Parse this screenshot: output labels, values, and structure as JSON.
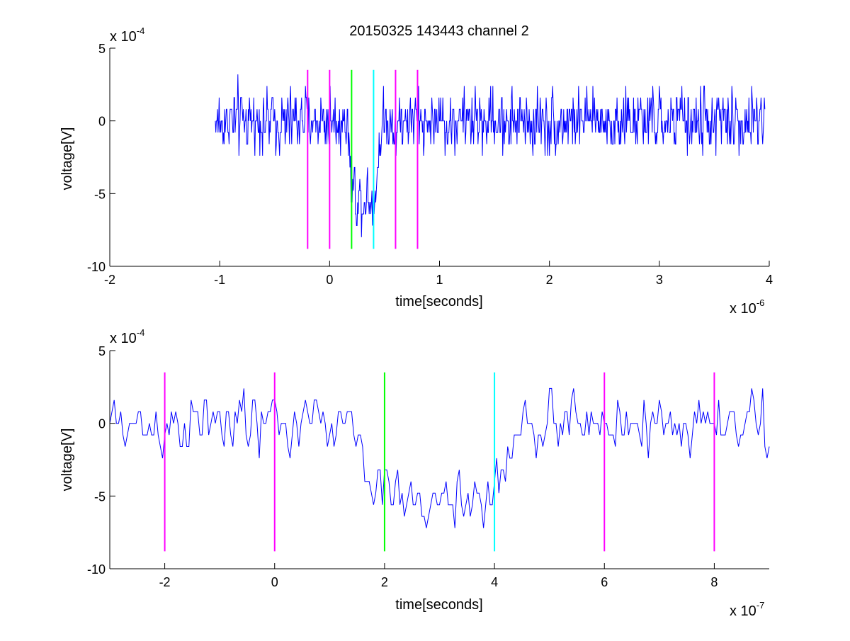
{
  "chart_data": [
    {
      "type": "line",
      "title": "20150325 143443 channel 2",
      "xlabel": "time[seconds]",
      "ylabel": "voltage[V]",
      "x_multiplier": {
        "base": "x 10",
        "exponent": "-6"
      },
      "y_multiplier": {
        "base": "x 10",
        "exponent": "-4"
      },
      "xlim": [
        -2,
        4
      ],
      "ylim": [
        -10,
        5
      ],
      "x_ticks": [
        -2,
        -1,
        0,
        1,
        2,
        3,
        4
      ],
      "x_tick_labels": [
        "-2",
        "-1",
        "0",
        "1",
        "2",
        "3",
        "4"
      ],
      "y_ticks": [
        -10,
        -5,
        0,
        5
      ],
      "y_tick_labels": [
        "-10",
        "-5",
        "0",
        "5"
      ],
      "grid": false,
      "series": [
        {
          "color": "#0000ff",
          "x_start": -1.04,
          "x_end": 3.96,
          "samples": 1001,
          "baseline_noise": [
            -4.0,
            3.3
          ],
          "pulse": {
            "x_start": 0.16,
            "x_end": 0.48,
            "min": -8.1,
            "level": -4.7
          }
        }
      ],
      "markers": [
        {
          "x": -0.2,
          "y_range": [
            -8.8,
            3.5
          ],
          "color": "#ff00ff"
        },
        {
          "x": 0.0,
          "y_range": [
            -8.8,
            3.5
          ],
          "color": "#ff00ff"
        },
        {
          "x": 0.2,
          "y_range": [
            -8.8,
            3.5
          ],
          "color": "#00ff00"
        },
        {
          "x": 0.4,
          "y_range": [
            -8.8,
            3.5
          ],
          "color": "#00ffff"
        },
        {
          "x": 0.6,
          "y_range": [
            -8.8,
            3.5
          ],
          "color": "#ff00ff"
        },
        {
          "x": 0.8,
          "y_range": [
            -8.8,
            3.5
          ],
          "color": "#ff00ff"
        }
      ]
    },
    {
      "type": "line",
      "title": "",
      "xlabel": "time[seconds]",
      "ylabel": "voltage[V]",
      "x_multiplier": {
        "base": "x 10",
        "exponent": "-7"
      },
      "y_multiplier": {
        "base": "x 10",
        "exponent": "-4"
      },
      "xlim": [
        -3,
        9
      ],
      "ylim": [
        -10,
        5
      ],
      "x_ticks": [
        -2,
        0,
        2,
        4,
        6,
        8
      ],
      "x_tick_labels": [
        "-2",
        "0",
        "2",
        "4",
        "6",
        "8"
      ],
      "y_ticks": [
        -10,
        -5,
        0,
        5
      ],
      "y_tick_labels": [
        "-10",
        "-5",
        "0",
        "5"
      ],
      "grid": false,
      "series": [
        {
          "color": "#0000ff",
          "x_start": -3.0,
          "x_end": 9.0,
          "samples": 301,
          "baseline_noise": [
            -3.2,
            3.4
          ],
          "pulse": {
            "x_start": 1.4,
            "x_end": 4.6,
            "min": -8.1,
            "level": -4.7
          }
        }
      ],
      "markers": [
        {
          "x": -2,
          "y_range": [
            -8.8,
            3.5
          ],
          "color": "#ff00ff"
        },
        {
          "x": 0,
          "y_range": [
            -8.8,
            3.5
          ],
          "color": "#ff00ff"
        },
        {
          "x": 2,
          "y_range": [
            -8.8,
            3.5
          ],
          "color": "#00ff00"
        },
        {
          "x": 4,
          "y_range": [
            -8.8,
            3.5
          ],
          "color": "#00ffff"
        },
        {
          "x": 6,
          "y_range": [
            -8.8,
            3.5
          ],
          "color": "#ff00ff"
        },
        {
          "x": 8,
          "y_range": [
            -8.8,
            3.5
          ],
          "color": "#ff00ff"
        }
      ]
    }
  ]
}
